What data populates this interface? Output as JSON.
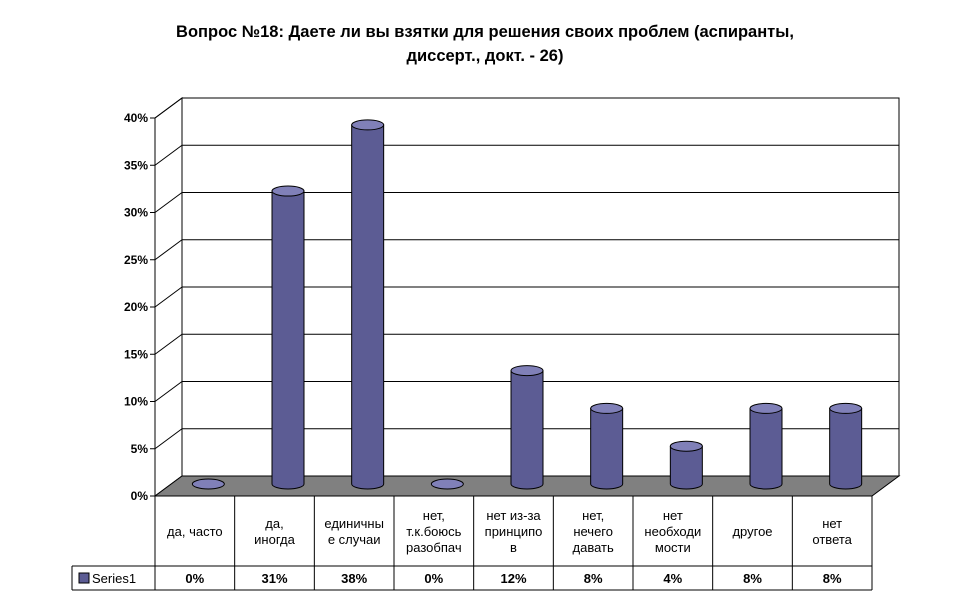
{
  "chart_data": {
    "type": "bar",
    "title_line1": "Вопрос №18: Даете ли вы взятки для решения своих проблем (аспиранты,",
    "title_line2": "диссерт., докт. - 26)",
    "categories": [
      [
        "да, часто"
      ],
      [
        "да,",
        "иногда"
      ],
      [
        "единичны",
        "е случаи"
      ],
      [
        "нет,",
        "т.к.боюсь",
        "разобпач"
      ],
      [
        "нет из-за",
        "принципо",
        "в"
      ],
      [
        "нет,",
        "нечего",
        "давать"
      ],
      [
        "нет",
        "необходи",
        "мости"
      ],
      [
        "другое"
      ],
      [
        "нет",
        "ответа"
      ]
    ],
    "series": [
      {
        "name": "Series1",
        "values": [
          0,
          31,
          38,
          0,
          12,
          8,
          4,
          8,
          8
        ],
        "value_labels": [
          "0%",
          "31%",
          "38%",
          "0%",
          "12%",
          "8%",
          "4%",
          "8%",
          "8%"
        ]
      }
    ],
    "y_ticks": [
      "0%",
      "5%",
      "10%",
      "15%",
      "20%",
      "25%",
      "30%",
      "35%",
      "40%"
    ],
    "ylim": [
      0,
      40
    ],
    "grid": true,
    "legend": "table-left",
    "colors": {
      "bar_front": "#5c5c94",
      "bar_top": "#8080b8",
      "floor": "#808080",
      "gridline": "#000000"
    }
  }
}
